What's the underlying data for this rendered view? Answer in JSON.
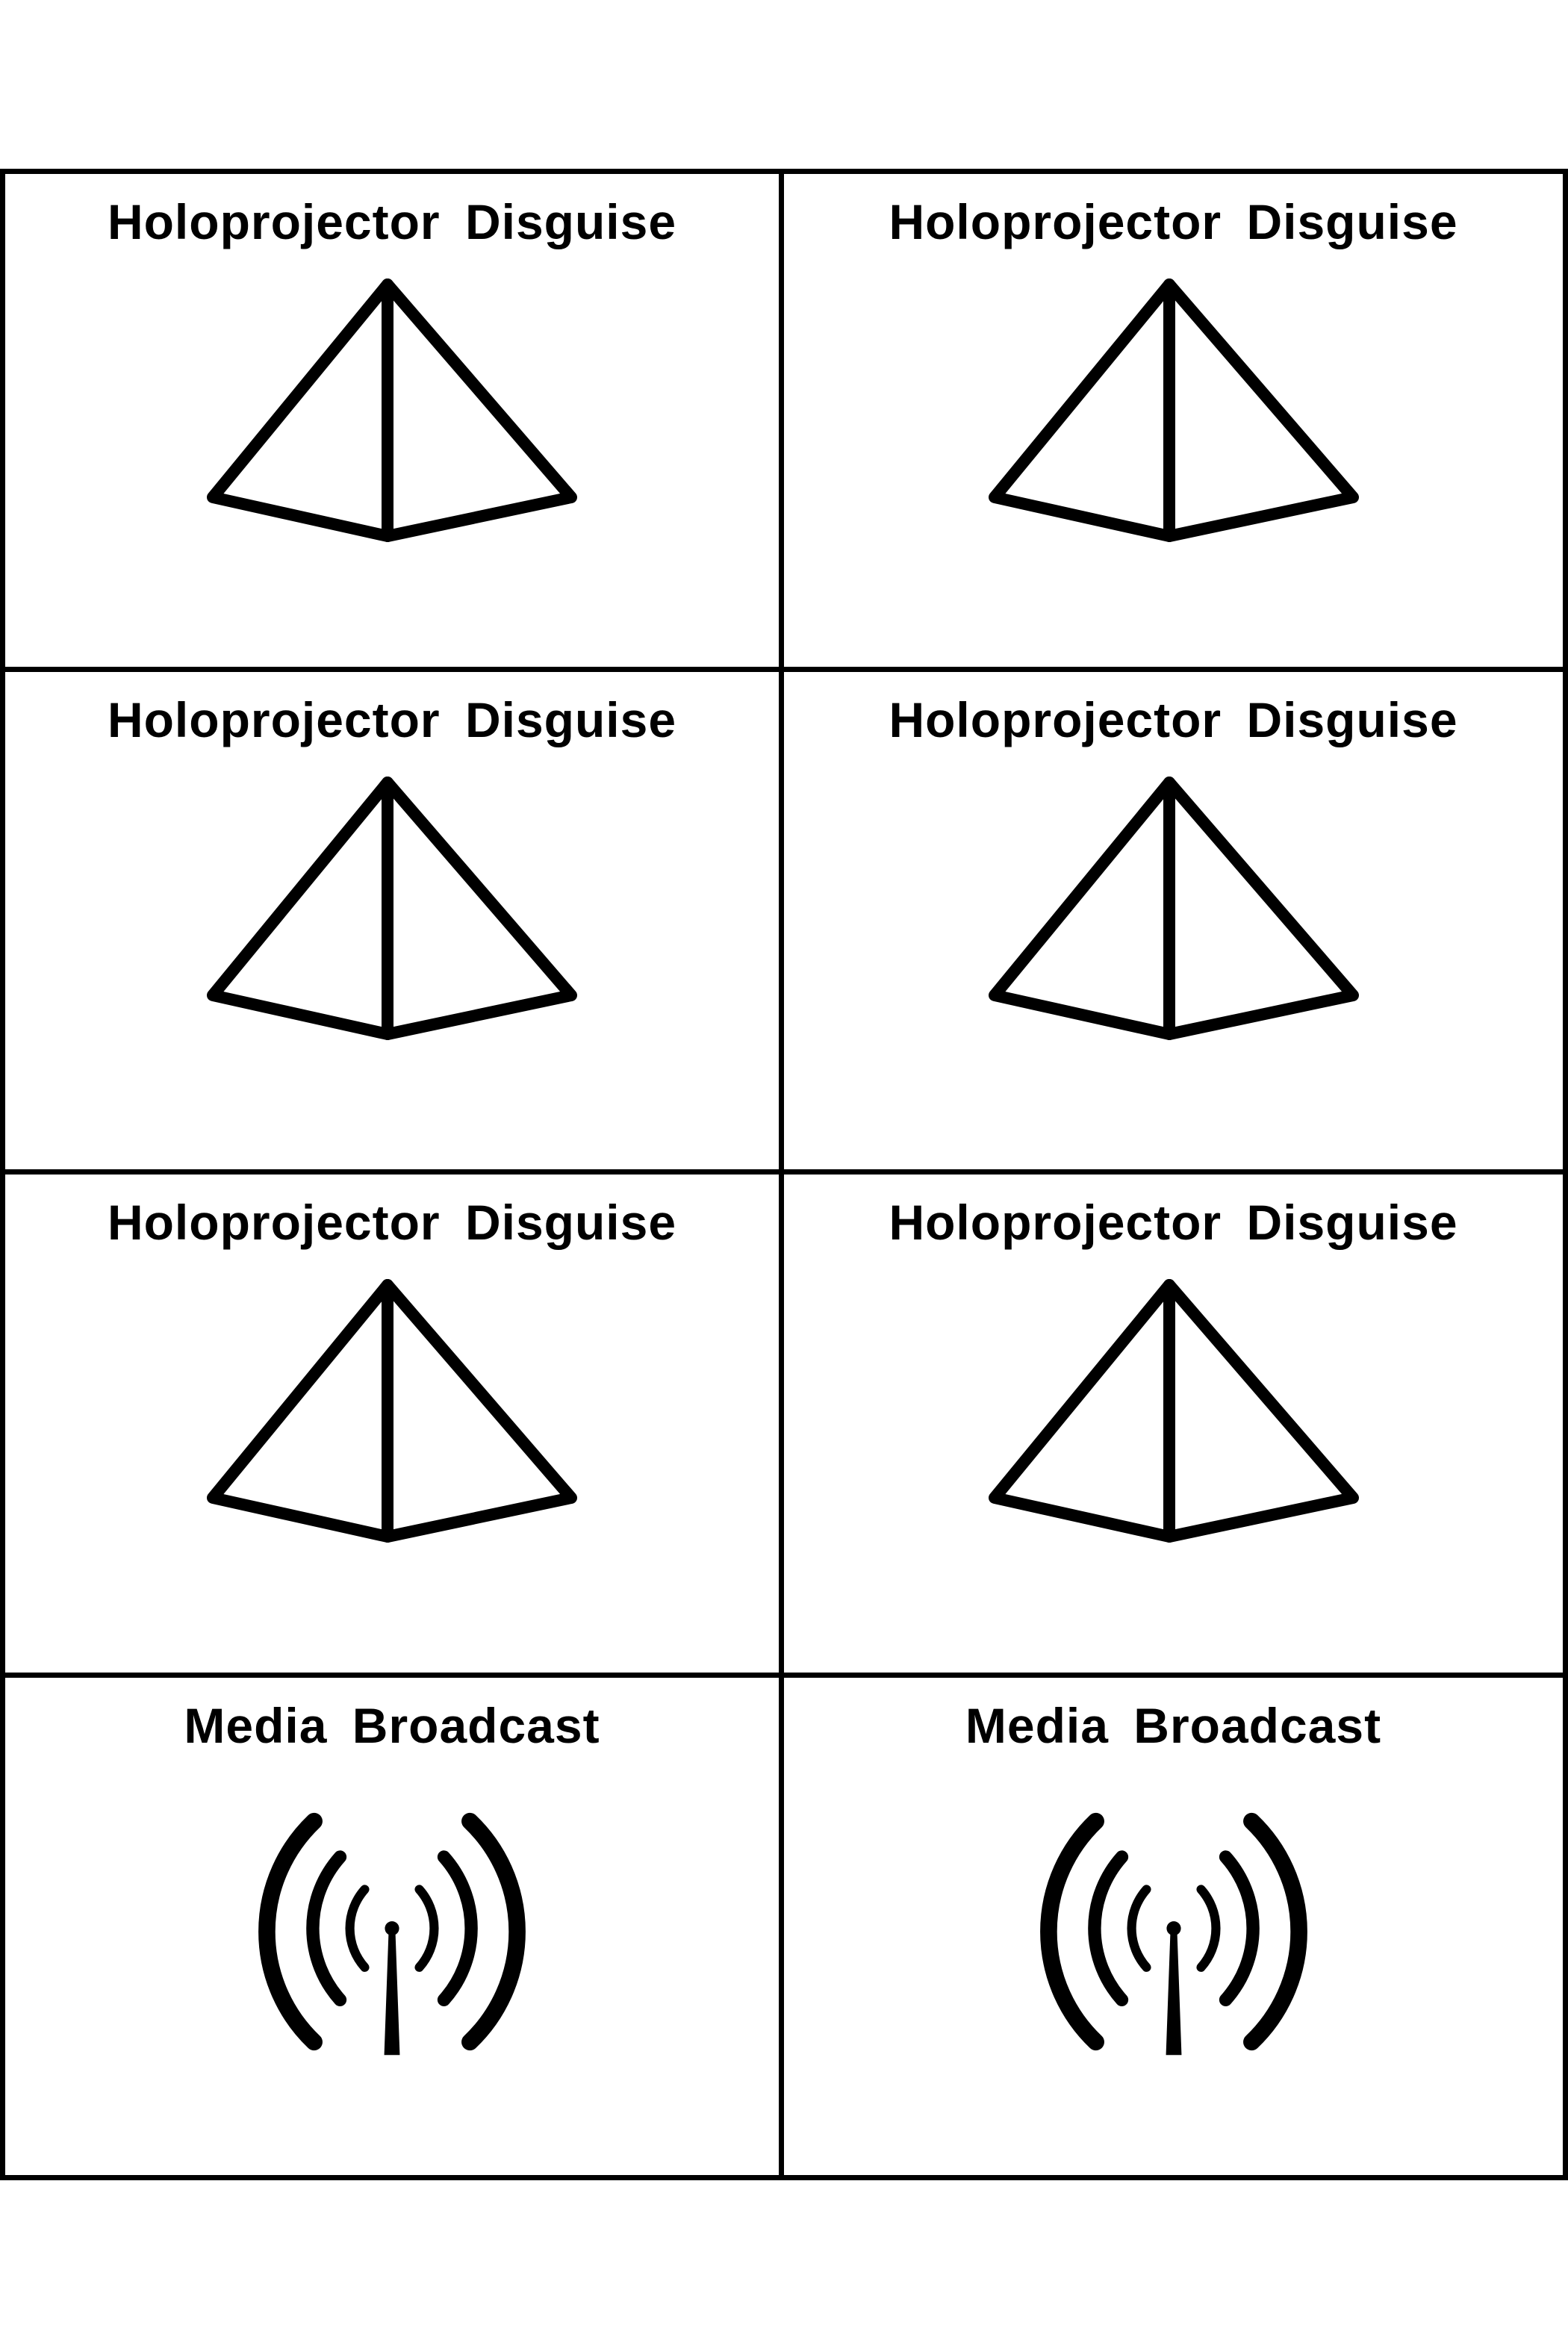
{
  "cards": [
    {
      "title": "Holoprojector  Disguise",
      "icon": "pyramid-icon"
    },
    {
      "title": "Holoprojector  Disguise",
      "icon": "pyramid-icon"
    },
    {
      "title": "Holoprojector  Disguise",
      "icon": "pyramid-icon"
    },
    {
      "title": "Holoprojector  Disguise",
      "icon": "pyramid-icon"
    },
    {
      "title": "Holoprojector  Disguise",
      "icon": "pyramid-icon"
    },
    {
      "title": "Holoprojector  Disguise",
      "icon": "pyramid-icon"
    },
    {
      "title": "Media  Broadcast",
      "icon": "broadcast-antenna-icon"
    },
    {
      "title": "Media  Broadcast",
      "icon": "broadcast-antenna-icon"
    }
  ],
  "colors": {
    "ink": "#000000",
    "paper": "#ffffff"
  }
}
